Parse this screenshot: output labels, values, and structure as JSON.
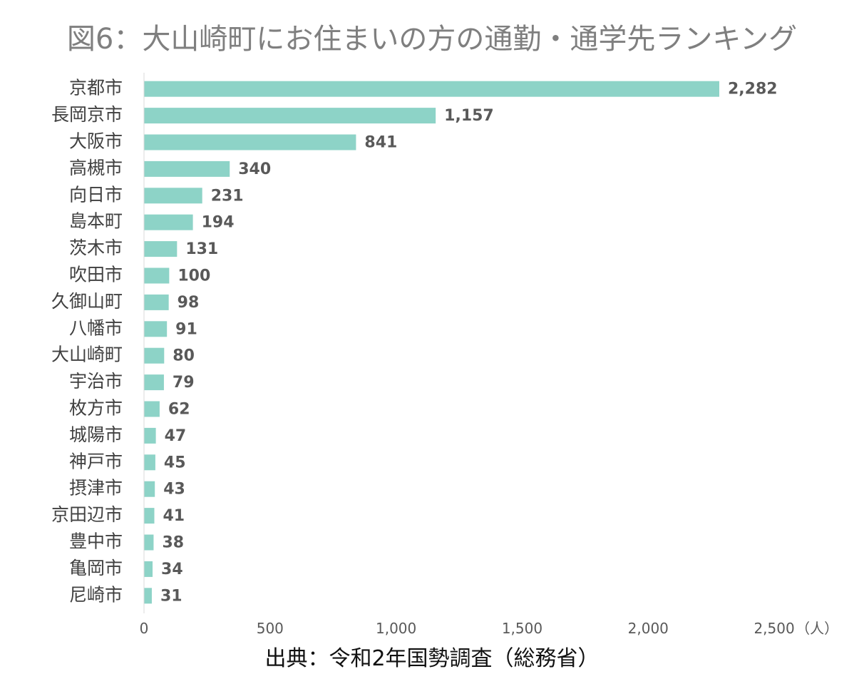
{
  "chart_data": {
    "type": "bar",
    "orientation": "horizontal",
    "title": "図6：大山崎町にお住まいの方の通勤・通学先ランキング",
    "categories": [
      "京都市",
      "長岡京市",
      "大阪市",
      "高槻市",
      "向日市",
      "島本町",
      "茨木市",
      "吹田市",
      "久御山町",
      "八幡市",
      "大山崎町",
      "宇治市",
      "枚方市",
      "城陽市",
      "神戸市",
      "摂津市",
      "京田辺市",
      "豊中市",
      "亀岡市",
      "尼崎市"
    ],
    "values": [
      2282,
      1157,
      841,
      340,
      231,
      194,
      131,
      100,
      98,
      91,
      80,
      79,
      62,
      47,
      45,
      43,
      41,
      38,
      34,
      31
    ],
    "value_labels": [
      "2,282",
      "1,157",
      "841",
      "340",
      "231",
      "194",
      "131",
      "100",
      "98",
      "91",
      "80",
      "79",
      "62",
      "47",
      "45",
      "43",
      "41",
      "38",
      "34",
      "31"
    ],
    "xlim": [
      0,
      2500
    ],
    "xticks": [
      0,
      500,
      1000,
      1500,
      2000,
      2500
    ],
    "xtick_labels": [
      "0",
      "500",
      "1,000",
      "1,500",
      "2,000",
      "2,500"
    ],
    "unit": "（人）",
    "bar_color": "#8dd3c7",
    "grid": false
  },
  "source": "出典：令和2年国勢調査（総務省）"
}
